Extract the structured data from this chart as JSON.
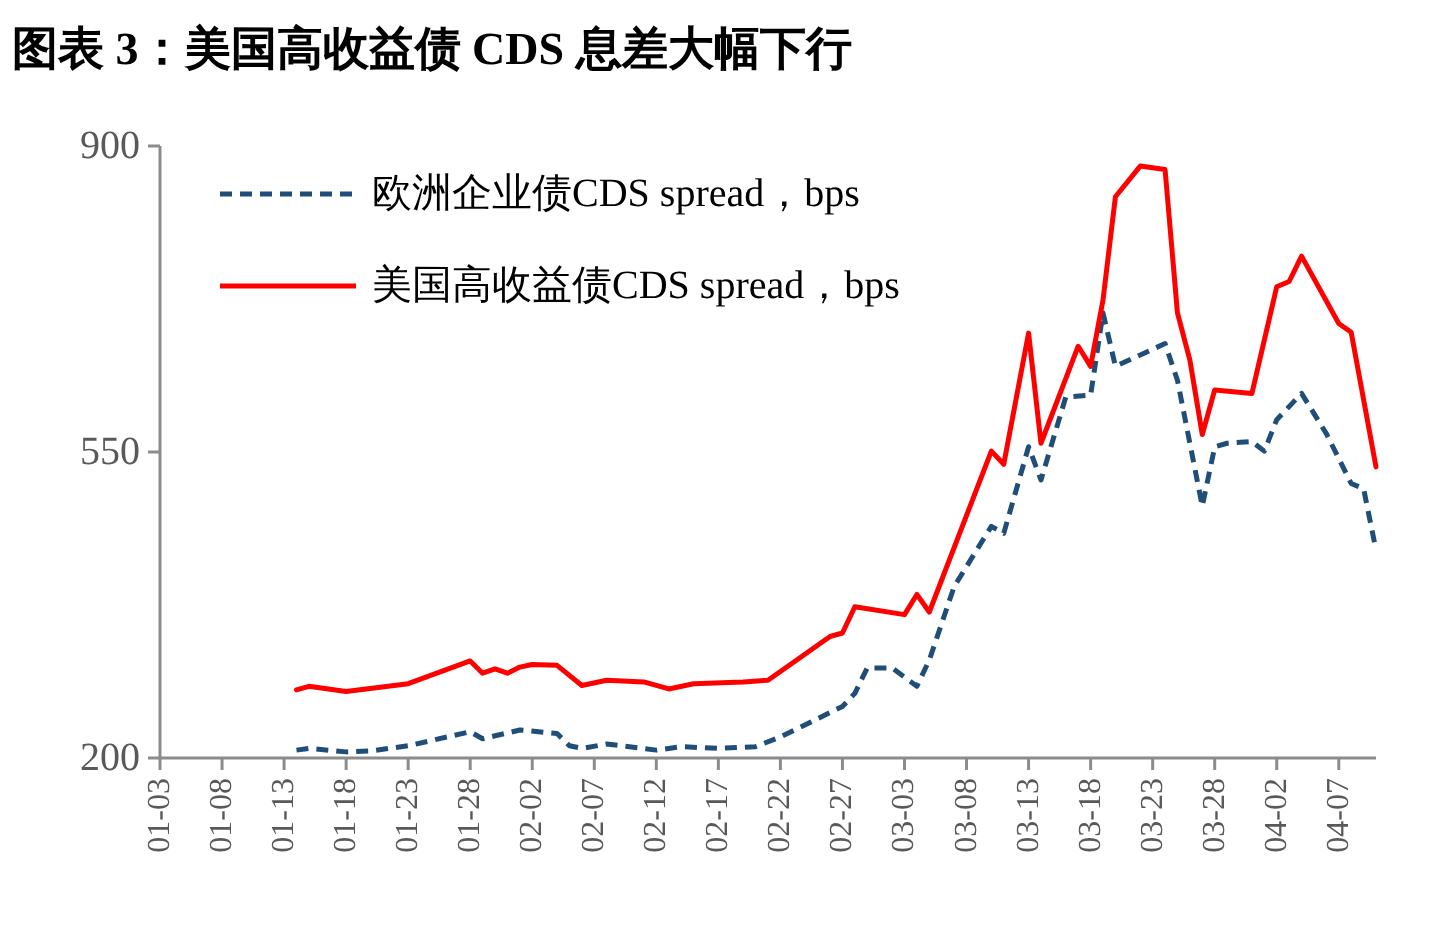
{
  "chart_data": {
    "type": "line",
    "title": "图表 3：美国高收益债 CDS 息差大幅下行",
    "xlim": [
      "--01-03",
      "--04-10"
    ],
    "xticks": [
      {
        "value": "--01-03",
        "label": "01-03"
      },
      {
        "value": "--01-08",
        "label": "01-08"
      },
      {
        "value": "--01-13",
        "label": "01-13"
      },
      {
        "value": "--01-18",
        "label": "01-18"
      },
      {
        "value": "--01-23",
        "label": "01-23"
      },
      {
        "value": "--01-28",
        "label": "01-28"
      },
      {
        "value": "--02-02",
        "label": "02-02"
      },
      {
        "value": "--02-07",
        "label": "02-07"
      },
      {
        "value": "--02-12",
        "label": "02-12"
      },
      {
        "value": "--02-17",
        "label": "02-17"
      },
      {
        "value": "--02-22",
        "label": "02-22"
      },
      {
        "value": "--02-27",
        "label": "02-27"
      },
      {
        "value": "--03-03",
        "label": "03-03"
      },
      {
        "value": "--03-08",
        "label": "03-08"
      },
      {
        "value": "--03-13",
        "label": "03-13"
      },
      {
        "value": "--03-18",
        "label": "03-18"
      },
      {
        "value": "--03-23",
        "label": "03-23"
      },
      {
        "value": "--03-28",
        "label": "03-28"
      },
      {
        "value": "--04-02",
        "label": "04-02"
      },
      {
        "value": "--04-07",
        "label": "04-07"
      }
    ],
    "ylim": [
      200,
      900
    ],
    "yticks": [
      200,
      550,
      900
    ],
    "grid": false,
    "legend": "top left",
    "series": [
      {
        "name": "欧洲企业债CDS spread，bps",
        "color": "#1f4e79",
        "line_style": "dashed",
        "x": [
          "--01-14",
          "--01-15",
          "--01-18",
          "--01-20",
          "--01-23",
          "--01-28",
          "--01-29",
          "--02-01",
          "--02-04",
          "--02-05",
          "--02-06",
          "--02-08",
          "--02-12",
          "--02-14",
          "--02-17",
          "--02-20",
          "--02-22",
          "--02-27",
          "--02-28",
          "--02-29",
          "--03-02",
          "--03-04",
          "--03-05",
          "--03-07",
          "--03-10",
          "--03-11",
          "--03-13",
          "--03-14",
          "--03-16",
          "--03-18",
          "--03-19",
          "--03-20",
          "--03-24",
          "--03-25",
          "--03-27",
          "--03-28",
          "--03-29",
          "--03-31",
          "--04-01",
          "--04-02",
          "--04-04",
          "--04-06",
          "--04-08",
          "--04-09",
          "--04-10"
        ],
        "values": [
          209,
          211,
          207,
          208,
          214,
          230,
          222,
          232,
          228,
          214,
          211,
          216,
          209,
          213,
          211,
          213,
          224,
          259,
          274,
          303,
          303,
          282,
          312,
          396,
          465,
          457,
          556,
          518,
          613,
          615,
          709,
          648,
          674,
          632,
          488,
          556,
          560,
          562,
          551,
          587,
          617,
          571,
          514,
          508,
          438
        ]
      },
      {
        "name": "美国高收益债CDS spread，bps",
        "color": "#ff0000",
        "line_style": "solid",
        "x": [
          "--01-14",
          "--01-15",
          "--01-18",
          "--01-23",
          "--01-28",
          "--01-29",
          "--01-30",
          "--01-31",
          "--02-01",
          "--02-02",
          "--02-04",
          "--02-06",
          "--02-08",
          "--02-11",
          "--02-13",
          "--02-15",
          "--02-19",
          "--02-21",
          "--02-26",
          "--02-27",
          "--02-28",
          "--03-03",
          "--03-04",
          "--03-05",
          "--03-10",
          "--03-11",
          "--03-13",
          "--03-14",
          "--03-17",
          "--03-18",
          "--03-19",
          "--03-20",
          "--03-22",
          "--03-24",
          "--03-25",
          "--03-26",
          "--03-27",
          "--03-28",
          "--03-31",
          "--04-02",
          "--04-03",
          "--04-04",
          "--04-07",
          "--04-08",
          "--04-10"
        ],
        "values": [
          278,
          282,
          276,
          285,
          311,
          297,
          302,
          297,
          304,
          307,
          306,
          283,
          289,
          287,
          279,
          285,
          287,
          289,
          339,
          343,
          373,
          364,
          387,
          367,
          551,
          536,
          686,
          560,
          671,
          648,
          724,
          842,
          877,
          873,
          709,
          655,
          570,
          621,
          617,
          739,
          745,
          774,
          697,
          687,
          533
        ]
      }
    ]
  }
}
